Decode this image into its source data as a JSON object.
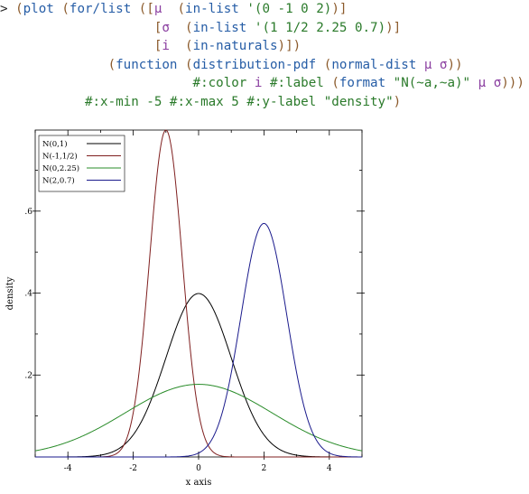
{
  "repl": {
    "lines": [
      [
        {
          "t": "> ",
          "c": "c-prompt"
        },
        {
          "t": "(",
          "c": "c-paren"
        },
        {
          "t": "plot ",
          "c": "c-kw"
        },
        {
          "t": "(",
          "c": "c-paren"
        },
        {
          "t": "for/list ",
          "c": "c-kw"
        },
        {
          "t": "([",
          "c": "c-paren"
        },
        {
          "t": "μ  ",
          "c": "c-sym"
        },
        {
          "t": "(",
          "c": "c-paren"
        },
        {
          "t": "in-list ",
          "c": "c-kw"
        },
        {
          "t": "'(0 -1 0 2)",
          "c": "c-str"
        },
        {
          "t": ")]",
          "c": "c-paren"
        }
      ],
      [
        {
          "t": "                    ",
          "c": ""
        },
        {
          "t": "[",
          "c": "c-paren"
        },
        {
          "t": "σ  ",
          "c": "c-sym"
        },
        {
          "t": "(",
          "c": "c-paren"
        },
        {
          "t": "in-list ",
          "c": "c-kw"
        },
        {
          "t": "'(1 1/2 2.25 0.7)",
          "c": "c-str"
        },
        {
          "t": ")]",
          "c": "c-paren"
        }
      ],
      [
        {
          "t": "                    ",
          "c": ""
        },
        {
          "t": "[",
          "c": "c-paren"
        },
        {
          "t": "i  ",
          "c": "c-sym"
        },
        {
          "t": "(",
          "c": "c-paren"
        },
        {
          "t": "in-naturals",
          "c": "c-kw"
        },
        {
          "t": ")])",
          "c": "c-paren"
        }
      ],
      [
        {
          "t": "              ",
          "c": ""
        },
        {
          "t": "(",
          "c": "c-paren"
        },
        {
          "t": "function ",
          "c": "c-kw"
        },
        {
          "t": "(",
          "c": "c-paren"
        },
        {
          "t": "distribution-pdf ",
          "c": "c-kw"
        },
        {
          "t": "(",
          "c": "c-paren"
        },
        {
          "t": "normal-dist ",
          "c": "c-kw"
        },
        {
          "t": "μ σ",
          "c": "c-sym"
        },
        {
          "t": "))",
          "c": "c-paren"
        }
      ],
      [
        {
          "t": "                         ",
          "c": ""
        },
        {
          "t": "#:color ",
          "c": "c-str"
        },
        {
          "t": "i ",
          "c": "c-sym"
        },
        {
          "t": "#:label ",
          "c": "c-str"
        },
        {
          "t": "(",
          "c": "c-paren"
        },
        {
          "t": "format ",
          "c": "c-kw"
        },
        {
          "t": "\"N(~a,~a)\" ",
          "c": "c-str"
        },
        {
          "t": "μ σ",
          "c": "c-sym"
        },
        {
          "t": ")))",
          "c": "c-paren"
        }
      ],
      [
        {
          "t": "           ",
          "c": ""
        },
        {
          "t": "#:x-min -5 #:x-max 5 #:y-label \"density\"",
          "c": "c-str"
        },
        {
          "t": ")",
          "c": "c-paren"
        }
      ]
    ]
  },
  "chart_data": {
    "type": "line",
    "xlabel": "x axis",
    "ylabel": "density",
    "xlim": [
      -5,
      5
    ],
    "ylim": [
      0,
      0.7978845608
    ],
    "xticks": [
      -4,
      -2,
      0,
      2,
      4
    ],
    "xtick_labels": [
      "-4",
      "-2",
      "0",
      "2",
      "4"
    ],
    "yticks": [
      0.2,
      0.4,
      0.6
    ],
    "ytick_labels": [
      ".2",
      ".4",
      ".6"
    ],
    "legend_placement": "top-left",
    "grid": false,
    "series": [
      {
        "name": "N(0,1)",
        "mu": 0,
        "sigma": 1,
        "color": "#000000"
      },
      {
        "name": "N(-1,1/2)",
        "mu": -1,
        "sigma": 0.5,
        "color": "#7f1f1f"
      },
      {
        "name": "N(0,2.25)",
        "mu": 0,
        "sigma": 2.25,
        "color": "#2a8c2a"
      },
      {
        "name": "N(2,0.7)",
        "mu": 2,
        "sigma": 0.7,
        "color": "#1a1a8c"
      }
    ]
  }
}
